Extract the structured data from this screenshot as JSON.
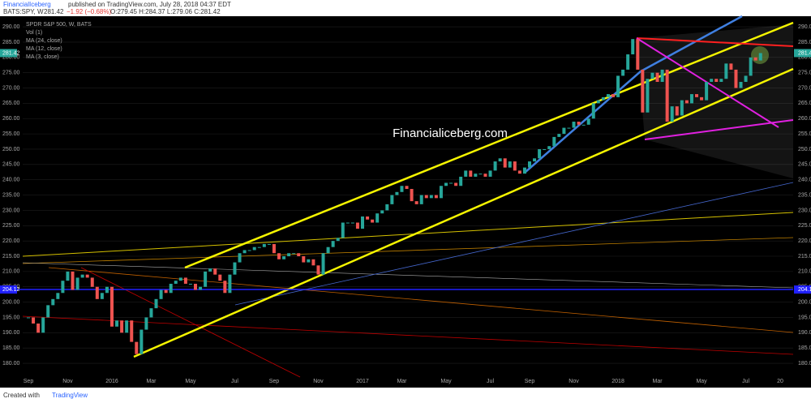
{
  "header": {
    "publisher": "FinancialIceberg",
    "published": "published on TradingView.com, July 28, 2018 04:37 EDT",
    "symbol": "BATS:SPY, W",
    "last": "281.42",
    "change": "−1.92 (−0.68%)",
    "ohlc": "O:279.45 H:284.37 L:279.06 C:281.42"
  },
  "footer": {
    "created": "Created with",
    "brand": "TradingView"
  },
  "chart_data": {
    "type": "candlestick",
    "title": "SPDR S&P 500, W, BATS",
    "indicators": [
      "Vol (1)",
      "MA (24, close)",
      "MA (12, close)",
      "MA (3, close)"
    ],
    "watermark": "Financialiceberg.com",
    "categories": [
      "Sep",
      null,
      null,
      null,
      null,
      null,
      null,
      null,
      "Nov",
      null,
      null,
      null,
      null,
      null,
      null,
      null,
      null,
      "2016",
      null,
      null,
      null,
      null,
      null,
      null,
      null,
      "Mar",
      null,
      null,
      null,
      null,
      null,
      null,
      null,
      "May",
      null,
      null,
      null,
      null,
      null,
      null,
      null,
      null,
      "Jul",
      null,
      null,
      null,
      null,
      null,
      null,
      null,
      "Sep",
      null,
      null,
      null,
      null,
      null,
      null,
      null,
      null,
      "Nov",
      null,
      null,
      null,
      null,
      null,
      null,
      null,
      null,
      "2017",
      null,
      null,
      null,
      null,
      null,
      null,
      null,
      "Mar",
      null,
      null,
      null,
      null,
      null,
      null,
      null,
      null,
      "May",
      null,
      null,
      null,
      null,
      null,
      null,
      null,
      null,
      "Jul",
      null,
      null,
      null,
      null,
      null,
      null,
      null,
      "Sep",
      null,
      null,
      null,
      null,
      null,
      null,
      null,
      null,
      "Nov",
      null,
      null,
      null,
      null,
      null,
      null,
      null,
      null,
      "2018",
      null,
      null,
      null,
      null,
      null,
      null,
      null,
      "Mar",
      null,
      null,
      null,
      null,
      null,
      null,
      null,
      null,
      "May",
      null,
      null,
      null,
      null,
      null,
      null,
      null,
      null,
      "Jul",
      null,
      null,
      null,
      null,
      null,
      null,
      "20"
    ],
    "close": [
      195,
      193,
      190,
      195,
      199,
      201,
      203,
      207,
      210,
      204,
      208,
      209,
      208,
      205,
      201,
      203,
      205,
      192,
      194,
      190,
      194,
      187,
      183,
      191,
      195,
      198,
      201,
      204,
      203,
      206,
      207,
      208,
      206,
      206,
      204,
      205,
      210,
      211,
      209,
      207,
      203,
      209,
      213,
      216,
      217,
      217,
      218,
      218,
      219,
      219,
      216,
      214,
      215,
      216,
      216,
      215,
      213,
      214,
      212,
      209,
      216,
      218,
      220,
      221,
      226,
      226,
      226,
      224,
      228,
      227,
      226,
      229,
      230,
      232,
      235,
      236,
      238,
      237,
      233,
      232,
      235,
      234,
      235,
      234,
      238,
      239,
      239,
      238,
      241,
      243,
      241,
      242,
      242,
      241,
      243,
      246,
      247,
      244,
      246,
      243,
      242,
      244,
      246,
      247,
      250,
      250,
      251,
      254,
      255,
      257,
      257,
      259,
      258,
      258,
      260,
      265,
      266,
      267,
      268,
      267,
      274,
      276,
      281,
      286,
      276,
      262,
      273,
      275,
      272,
      276,
      259,
      264,
      261,
      266,
      265,
      268,
      267,
      266,
      272,
      273,
      272,
      273,
      278,
      276,
      270,
      272,
      274,
      280,
      279,
      281.42,
      null,
      null,
      null,
      null
    ],
    "up_color": "#26a69a",
    "down_color": "#ef5350",
    "ylim": [
      176.3,
      294
    ],
    "yticks": [
      {
        "value": 180,
        "label": "180.00"
      },
      {
        "value": 185,
        "label": "185.00"
      },
      {
        "value": 190,
        "label": "190.00"
      },
      {
        "value": 195,
        "label": "195.00"
      },
      {
        "value": 200,
        "label": "200.00"
      },
      {
        "value": 205,
        "label": "205.00"
      },
      {
        "value": 210,
        "label": "210.00"
      },
      {
        "value": 215,
        "label": "215.00"
      },
      {
        "value": 220,
        "label": "220.00"
      },
      {
        "value": 225,
        "label": "225.00"
      },
      {
        "value": 230,
        "label": "230.00"
      },
      {
        "value": 235,
        "label": "235.00"
      },
      {
        "value": 240,
        "label": "240.00"
      },
      {
        "value": 245,
        "label": "245.00"
      },
      {
        "value": 250,
        "label": "250.00"
      },
      {
        "value": 255,
        "label": "255.00"
      },
      {
        "value": 260,
        "label": "260.00"
      },
      {
        "value": 265,
        "label": "265.00"
      },
      {
        "value": 270,
        "label": "270.00"
      },
      {
        "value": 275,
        "label": "275.00"
      },
      {
        "value": 280,
        "label": "280.00"
      },
      {
        "value": 285,
        "label": "285.00"
      },
      {
        "value": 290,
        "label": "290.00"
      }
    ],
    "last_price": 281.42,
    "hline": 204.12
  }
}
